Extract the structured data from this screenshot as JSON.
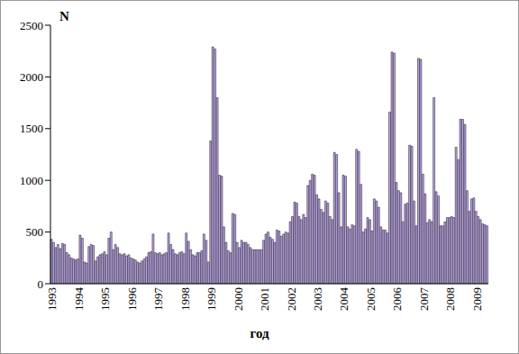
{
  "chart_data": {
    "type": "bar",
    "xlabel": "год",
    "ylabel": "N",
    "categories": [
      "1993",
      null,
      null,
      null,
      null,
      null,
      null,
      null,
      null,
      null,
      null,
      null,
      "1994",
      null,
      null,
      null,
      null,
      null,
      null,
      null,
      null,
      null,
      null,
      null,
      "1995",
      null,
      null,
      null,
      null,
      null,
      null,
      null,
      null,
      null,
      null,
      null,
      "1996",
      null,
      null,
      null,
      null,
      null,
      null,
      null,
      null,
      null,
      null,
      null,
      "1997",
      null,
      null,
      null,
      null,
      null,
      null,
      null,
      null,
      null,
      null,
      null,
      "1998",
      null,
      null,
      null,
      null,
      null,
      null,
      null,
      null,
      null,
      null,
      null,
      "1999",
      null,
      null,
      null,
      null,
      null,
      null,
      null,
      null,
      null,
      null,
      null,
      "2000",
      null,
      null,
      null,
      null,
      null,
      null,
      null,
      null,
      null,
      null,
      null,
      "2001",
      null,
      null,
      null,
      null,
      null,
      null,
      null,
      null,
      null,
      null,
      null,
      "2002",
      null,
      null,
      null,
      null,
      null,
      null,
      null,
      null,
      null,
      null,
      null,
      "2003",
      null,
      null,
      null,
      null,
      null,
      null,
      null,
      null,
      null,
      null,
      null,
      "2004",
      null,
      null,
      null,
      null,
      null,
      null,
      null,
      null,
      null,
      null,
      null,
      "2005",
      null,
      null,
      null,
      null,
      null,
      null,
      null,
      null,
      null,
      null,
      null,
      "2006",
      null,
      null,
      null,
      null,
      null,
      null,
      null,
      null,
      null,
      null,
      null,
      "2007",
      null,
      null,
      null,
      null,
      null,
      null,
      null,
      null,
      null,
      null,
      null,
      "2008",
      null,
      null,
      null,
      null,
      null,
      null,
      null,
      null,
      null,
      null,
      null,
      "2009",
      null,
      null,
      null,
      null,
      null
    ],
    "values": [
      430,
      400,
      350,
      380,
      340,
      390,
      380,
      300,
      280,
      250,
      240,
      230,
      240,
      470,
      440,
      210,
      200,
      360,
      380,
      370,
      220,
      260,
      280,
      290,
      310,
      280,
      440,
      500,
      330,
      380,
      350,
      290,
      280,
      290,
      270,
      280,
      250,
      240,
      230,
      210,
      200,
      220,
      240,
      260,
      300,
      310,
      480,
      300,
      290,
      300,
      280,
      290,
      300,
      490,
      380,
      330,
      290,
      280,
      300,
      310,
      290,
      490,
      410,
      330,
      280,
      270,
      300,
      300,
      320,
      480,
      420,
      210,
      1380,
      2290,
      2270,
      1800,
      1050,
      1040,
      550,
      400,
      320,
      300,
      680,
      670,
      400,
      350,
      420,
      400,
      400,
      380,
      350,
      330,
      330,
      330,
      330,
      330,
      420,
      480,
      500,
      450,
      430,
      400,
      520,
      510,
      460,
      480,
      500,
      490,
      600,
      650,
      790,
      780,
      650,
      620,
      670,
      640,
      950,
      1000,
      1060,
      1050,
      860,
      820,
      720,
      690,
      800,
      780,
      650,
      620,
      1270,
      1250,
      880,
      550,
      1050,
      1040,
      550,
      530,
      570,
      560,
      1300,
      1280,
      960,
      500,
      530,
      640,
      620,
      510,
      820,
      800,
      740,
      550,
      520,
      520,
      490,
      1660,
      2240,
      2230,
      980,
      900,
      880,
      600,
      770,
      780,
      1340,
      1330,
      800,
      560,
      2180,
      2170,
      1060,
      870,
      590,
      620,
      600,
      1800,
      890,
      850,
      560,
      560,
      600,
      640,
      640,
      650,
      640,
      1320,
      1200,
      1590,
      1590,
      1540,
      900,
      700,
      820,
      830,
      700,
      650,
      620,
      580,
      570,
      560
    ],
    "color": "#b8a5e3",
    "ylim": [
      0,
      2500
    ],
    "yticks": [
      0,
      500,
      1000,
      1500,
      2000,
      2500
    ],
    "grid": false
  }
}
